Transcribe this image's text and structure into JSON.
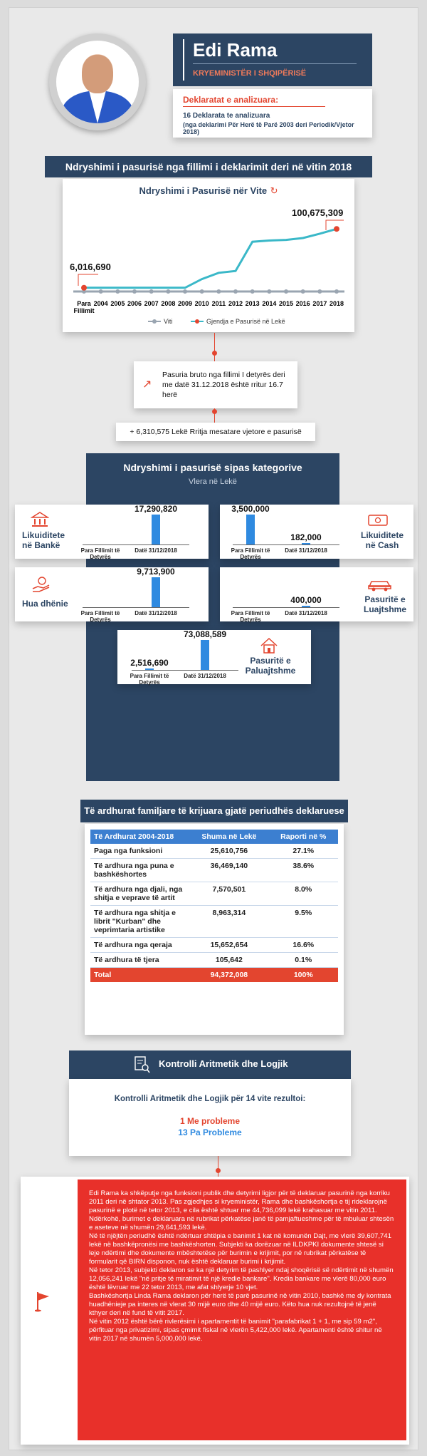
{
  "header": {
    "name": "Edi Rama",
    "role": "KRYEMINISTËR I SHQIPËRISË",
    "declarations_title": "Deklaratat e analizuara:",
    "declarations_count": "16 Deklarata te analizuara",
    "declarations_range": "(nga deklarimi Për Herë të Parë 2003 deri Periodik/Vjetor 2018)"
  },
  "wealth_section": {
    "heading": "Ndryshimi i pasurisë nga fillimi i deklarimit deri në vitin 2018",
    "summary": "Pasuria bruto nga fillimi I detyrës deri me datë 31.12.2018 është rritur 16.7 herë",
    "average": "+ 6,310,575 Lekë Rritja mesatare vjetore e pasurisë"
  },
  "chart_data": {
    "type": "line",
    "title": "Ndryshimi i Pasurisë nër Vite",
    "x": [
      "Para Fillimit",
      "2004",
      "2005",
      "2006",
      "2007",
      "2008",
      "2009",
      "2010",
      "2011",
      "2012",
      "2013",
      "2014",
      "2015",
      "2016",
      "2017",
      "2018"
    ],
    "series": [
      {
        "name": "Gjendja e Pasurisë në Lekë",
        "values": [
          6016690,
          6016690,
          6016690,
          6016690,
          6016690,
          6016690,
          6016690,
          20000000,
          30000000,
          33000000,
          80000000,
          82000000,
          83000000,
          86000000,
          93000000,
          100675309
        ]
      }
    ],
    "legend": [
      "Viti",
      "Gjendja e Pasurisë në Lekë"
    ],
    "annotations": [
      "6,016,690",
      "100,675,309"
    ],
    "ylim": [
      0,
      110000000
    ],
    "grid": false
  },
  "categories_section": {
    "heading": "Ndryshimi i pasurisë sipas kategorive",
    "subheading": "Vlera në Lekë",
    "x_before": "Para Fillimit të Detyrës",
    "x_after": "Datë 31/12/2018",
    "items": [
      {
        "label": "Likuiditete në Bankë",
        "before": 0,
        "after": 17290820,
        "after_label": "17,290,820",
        "before_label": ""
      },
      {
        "label": "Likuiditete në Cash",
        "before": 3500000,
        "after": 182000,
        "before_label": "3,500,000",
        "after_label": "182,000"
      },
      {
        "label": "Hua dhënie",
        "before": 0,
        "after": 9713900,
        "before_label": "",
        "after_label": "9,713,900"
      },
      {
        "label": "Pasuritë e Luajtshme",
        "before": 0,
        "after": 400000,
        "before_label": "",
        "after_label": "400,000"
      },
      {
        "label": "Pasuritë e Paluajtshme",
        "before": 2516690,
        "after": 73088589,
        "before_label": "2,516,690",
        "after_label": "73,088,589"
      }
    ]
  },
  "income_section": {
    "heading": "Të ardhurat familjare të krijuara gjatë periudhës deklaruese",
    "columns": [
      "Të Ardhurat 2004-2018",
      "Shuma në Lekë",
      "Raporti në %"
    ],
    "rows": [
      [
        "Paga nga funksioni",
        "25,610,756",
        "27.1%"
      ],
      [
        "Të ardhura nga puna e bashkëshortes",
        "36,469,140",
        "38.6%"
      ],
      [
        "Të ardhura nga djali, nga shitja e veprave të artit",
        "7,570,501",
        "8.0%"
      ],
      [
        "Të ardhura nga shitja e librit \"Kurban\" dhe veprimtaria artistike",
        "8,963,314",
        "9.5%"
      ],
      [
        "Të ardhura nga qeraja",
        "15,652,654",
        "16.6%"
      ],
      [
        "Të ardhura të tjera",
        "105,642",
        "0.1%"
      ]
    ],
    "total": [
      "Total",
      "94,372,008",
      "100%"
    ]
  },
  "control_section": {
    "heading": "Kontrolli Aritmetik dhe Logjik",
    "summary": "Kontrolli Aritmetik dhe Logjik për 14 vite rezultoi:",
    "problems": "1 Me probleme",
    "no_problems": "13 Pa Probleme"
  },
  "notes": {
    "text": "Edi Rama ka shkëputje nga funksioni publik dhe detyrimi ligjor për të deklaruar pasurinë nga korriku 2011 deri në shtator 2013. Pas zgjedhjes si kryeministër, Rama dhe bashkëshortja e tij rideklarojnë pasurinë e plotë në tetor 2013, e cila është shtuar me 44,736,099 lekë krahasuar me vitin 2011. Ndërkohë, burimet e deklaruara në rubrikat përkatëse janë të pamjaftueshme për të mbuluar shtesën e aseteve në shumën 29,641,593 lekë.\nNë të njëjtën periudhë është ndërtuar shtëpia e banimit 1 kat në komunën Dajt, me vlerë 39,607,741 lekë në bashkëpronësi me bashkëshorten. Subjekti ka dorëzuar në ILDKPKI dokumente shtesë si leje ndërtimi dhe dokumente mbështetëse për burimin e krijimit, por në rubrikat përkatëse të formularit që BIRN disponon, nuk është deklaruar burimi i krijimit.\nNë tetor 2013, subjekti deklaron se ka një detyrim të pashlyer ndaj shoqërisë së ndërtimit në shumën 12,056,241 lekë \"në pritje të miratimit të një kredie bankare\". Kredia bankare me vlerë 80,000 euro është lëvruar me 22 tetor 2013, me afat shlyerje 10 vjet.\nBashkëshortja Linda Rama deklaron për herë të parë pasurinë në vitin 2010, bashkë me dy kontrata huadhënieje pa interes në vlerat 30 mijë euro dhe 40 mijë euro. Këto hua nuk rezultojnë të jenë kthyer deri në fund të vitit 2017.\nNë vitin 2012 është bërë rivlerësimi i apartamentit të banimit \"parafabrikat 1 + 1, me sip 59 m2\", përfituar nga privatizimi, sipas çmimit fiskal në vlerën 5,422,000 lekë. Apartamenti është shitur në vitin 2017 në shumën 5,000,000 lekë."
  },
  "colors": {
    "navy": "#2c4563",
    "accent_red": "#e3452f",
    "bar_blue": "#2f8ae0",
    "teal_line": "#3ab8c8"
  },
  "icons": [
    "bank-icon",
    "cash-icon",
    "hand-coin-icon",
    "car-icon",
    "house-icon",
    "refresh-icon",
    "growth-arrow-icon",
    "document-search-icon",
    "flag-icon"
  ]
}
